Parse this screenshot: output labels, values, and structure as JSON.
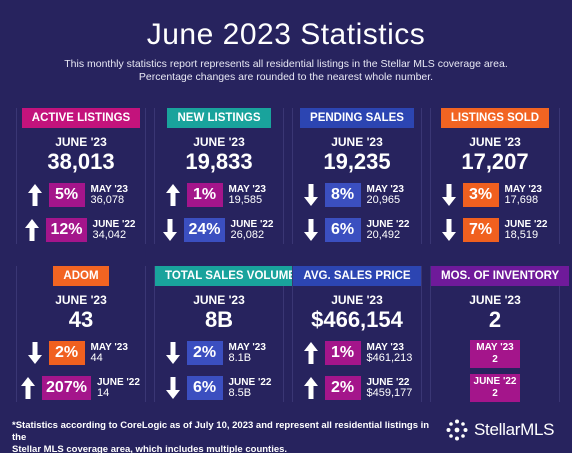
{
  "title": "June 2023 Statistics",
  "subtitle_line1": "This monthly statistics report represents all residential listings in the Stellar MLS coverage area.",
  "subtitle_line2": "Percentage changes are rounded to the nearest whole number.",
  "colors": {
    "background": "#27235e",
    "up_pink": "#a4158b",
    "down_blue": "#3b4fc0",
    "down_orange": "#f0601f",
    "tag_active": "#c3137c",
    "tag_teal": "#19a39c",
    "tag_blue": "#2c45b2",
    "tag_orange": "#f26422",
    "tag_purple": "#6f1a9a"
  },
  "cards": [
    {
      "tag": "ACTIVE LISTINGS",
      "period": "JUNE '23",
      "value": "38,013",
      "rows": [
        {
          "dir": "up",
          "pct": "5%",
          "label": "MAY '23",
          "value": "36,078"
        },
        {
          "dir": "up",
          "pct": "12%",
          "label": "JUNE '22",
          "value": "34,042"
        }
      ]
    },
    {
      "tag": "NEW LISTINGS",
      "period": "JUNE '23",
      "value": "19,833",
      "rows": [
        {
          "dir": "up",
          "pct": "1%",
          "label": "MAY '23",
          "value": "19,585"
        },
        {
          "dir": "down",
          "pct": "24%",
          "label": "JUNE '22",
          "value": "26,082"
        }
      ]
    },
    {
      "tag": "PENDING SALES",
      "period": "JUNE '23",
      "value": "19,235",
      "rows": [
        {
          "dir": "down",
          "pct": "8%",
          "label": "MAY '23",
          "value": "20,965"
        },
        {
          "dir": "down",
          "pct": "6%",
          "label": "JUNE '22",
          "value": "20,492"
        }
      ]
    },
    {
      "tag": "LISTINGS SOLD",
      "period": "JUNE '23",
      "value": "17,207",
      "rows": [
        {
          "dir": "down",
          "pct": "3%",
          "label": "MAY '23",
          "value": "17,698"
        },
        {
          "dir": "down",
          "pct": "7%",
          "label": "JUNE '22",
          "value": "18,519"
        }
      ]
    },
    {
      "tag": "ADOM",
      "period": "JUNE '23",
      "value": "43",
      "rows": [
        {
          "dir": "down",
          "pct": "2%",
          "label": "MAY '23",
          "value": "44"
        },
        {
          "dir": "up",
          "pct": "207%",
          "label": "JUNE '22",
          "value": "14"
        }
      ]
    },
    {
      "tag": "TOTAL SALES VOLUME",
      "period": "JUNE '23",
      "value": "8B",
      "rows": [
        {
          "dir": "down",
          "pct": "2%",
          "label": "MAY '23",
          "value": "8.1B"
        },
        {
          "dir": "down",
          "pct": "6%",
          "label": "JUNE '22",
          "value": "8.5B"
        }
      ]
    },
    {
      "tag": "AVG. SALES PRICE",
      "period": "JUNE '23",
      "value": "$466,154",
      "rows": [
        {
          "dir": "up",
          "pct": "1%",
          "label": "MAY '23",
          "value": "$461,213"
        },
        {
          "dir": "up",
          "pct": "2%",
          "label": "JUNE '22",
          "value": "$459,177"
        }
      ]
    },
    {
      "tag": "MOS. OF INVENTORY",
      "period": "JUNE '23",
      "value": "2",
      "chips": [
        {
          "label": "MAY '23",
          "value": "2"
        },
        {
          "label": "JUNE '22",
          "value": "2"
        }
      ]
    }
  ],
  "footer_line1": "*Statistics according to CoreLogic as of July 10, 2023 and represent all residential listings in the",
  "footer_line2": "Stellar MLS coverage area, which includes multiple counties.",
  "logo": {
    "text": "StellarMLS",
    "icon": "stellar-star-icon"
  }
}
